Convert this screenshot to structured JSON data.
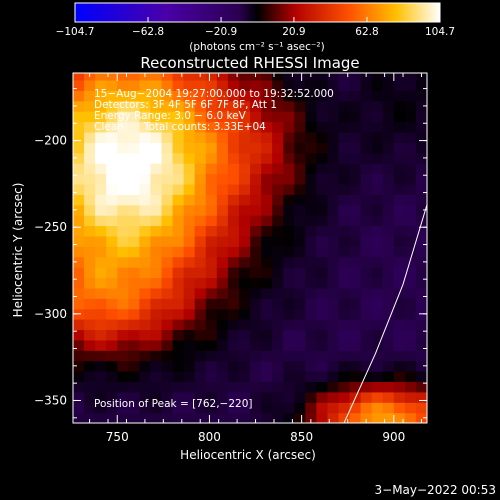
{
  "chart_data": {
    "type": "heatmap",
    "title": "Reconstructed RHESSI Image",
    "xlabel": "Heliocentric X (arcsec)",
    "ylabel": "Heliocentric Y (arcsec)",
    "xlim": [
      726,
      918
    ],
    "ylim": [
      -363,
      -161
    ],
    "x_ticks": [
      750,
      800,
      850,
      900
    ],
    "y_ticks": [
      -200,
      -250,
      -300,
      -350
    ],
    "colorbar": {
      "range": [
        -104.7,
        104.7
      ],
      "ticks": [
        "−104.7",
        "−62.8",
        "−20.9",
        "20.9",
        "62.8",
        "104.7"
      ],
      "tick_values": [
        -104.7,
        -62.8,
        -20.9,
        20.9,
        62.8,
        104.7
      ],
      "unit_label": "(photons cm⁻² s⁻¹ asec⁻²)"
    },
    "annotations": [
      "15−Aug−2004 19:27:00.000 to 19:32:52.000",
      "Detectors: 3F 4F 5F 6F 7F 8F, Att 1",
      "Energy Range: 3.0 − 6.0 keV",
      "Clean      Total counts: 3.33E+04"
    ],
    "peak_label": "Position of Peak = [762,−220]",
    "peak": [
      762,
      -220
    ],
    "background_level": -20,
    "sources": [
      {
        "x": 755,
        "y": -215,
        "sx": 45,
        "sy": 55,
        "amp": 130
      },
      {
        "x": 738,
        "y": -295,
        "sx": 30,
        "sy": 20,
        "amp": 35
      },
      {
        "x": 895,
        "y": -360,
        "sx": 28,
        "sy": 14,
        "amp": 90
      },
      {
        "x": 830,
        "y": -200,
        "sx": 25,
        "sy": 25,
        "amp": 18
      },
      {
        "x": 905,
        "y": -175,
        "sx": 20,
        "sy": 30,
        "amp": 15
      }
    ],
    "limb": [
      [
        918,
        -237
      ],
      [
        905,
        -283
      ],
      [
        890,
        -323
      ],
      [
        873,
        -363
      ]
    ],
    "timestamp": "3−May−2022 00:53"
  }
}
